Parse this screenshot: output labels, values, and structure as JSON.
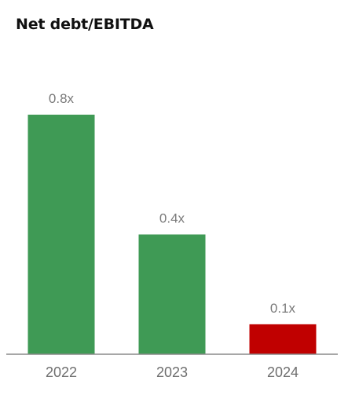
{
  "chart_data": {
    "type": "bar",
    "title": "Net debt/EBITDA",
    "categories": [
      "2022",
      "2023",
      "2024"
    ],
    "values": [
      0.8,
      0.4,
      0.1
    ],
    "value_labels": [
      "0.8x",
      "0.4x",
      "0.1x"
    ],
    "xlabel": "",
    "ylabel": "",
    "ylim": [
      0,
      0.8
    ],
    "grid": false,
    "legend": "none",
    "bar_colors": [
      "#3f9a55",
      "#3f9a55",
      "#c00000"
    ],
    "axis_color": "#8a8a8a"
  }
}
